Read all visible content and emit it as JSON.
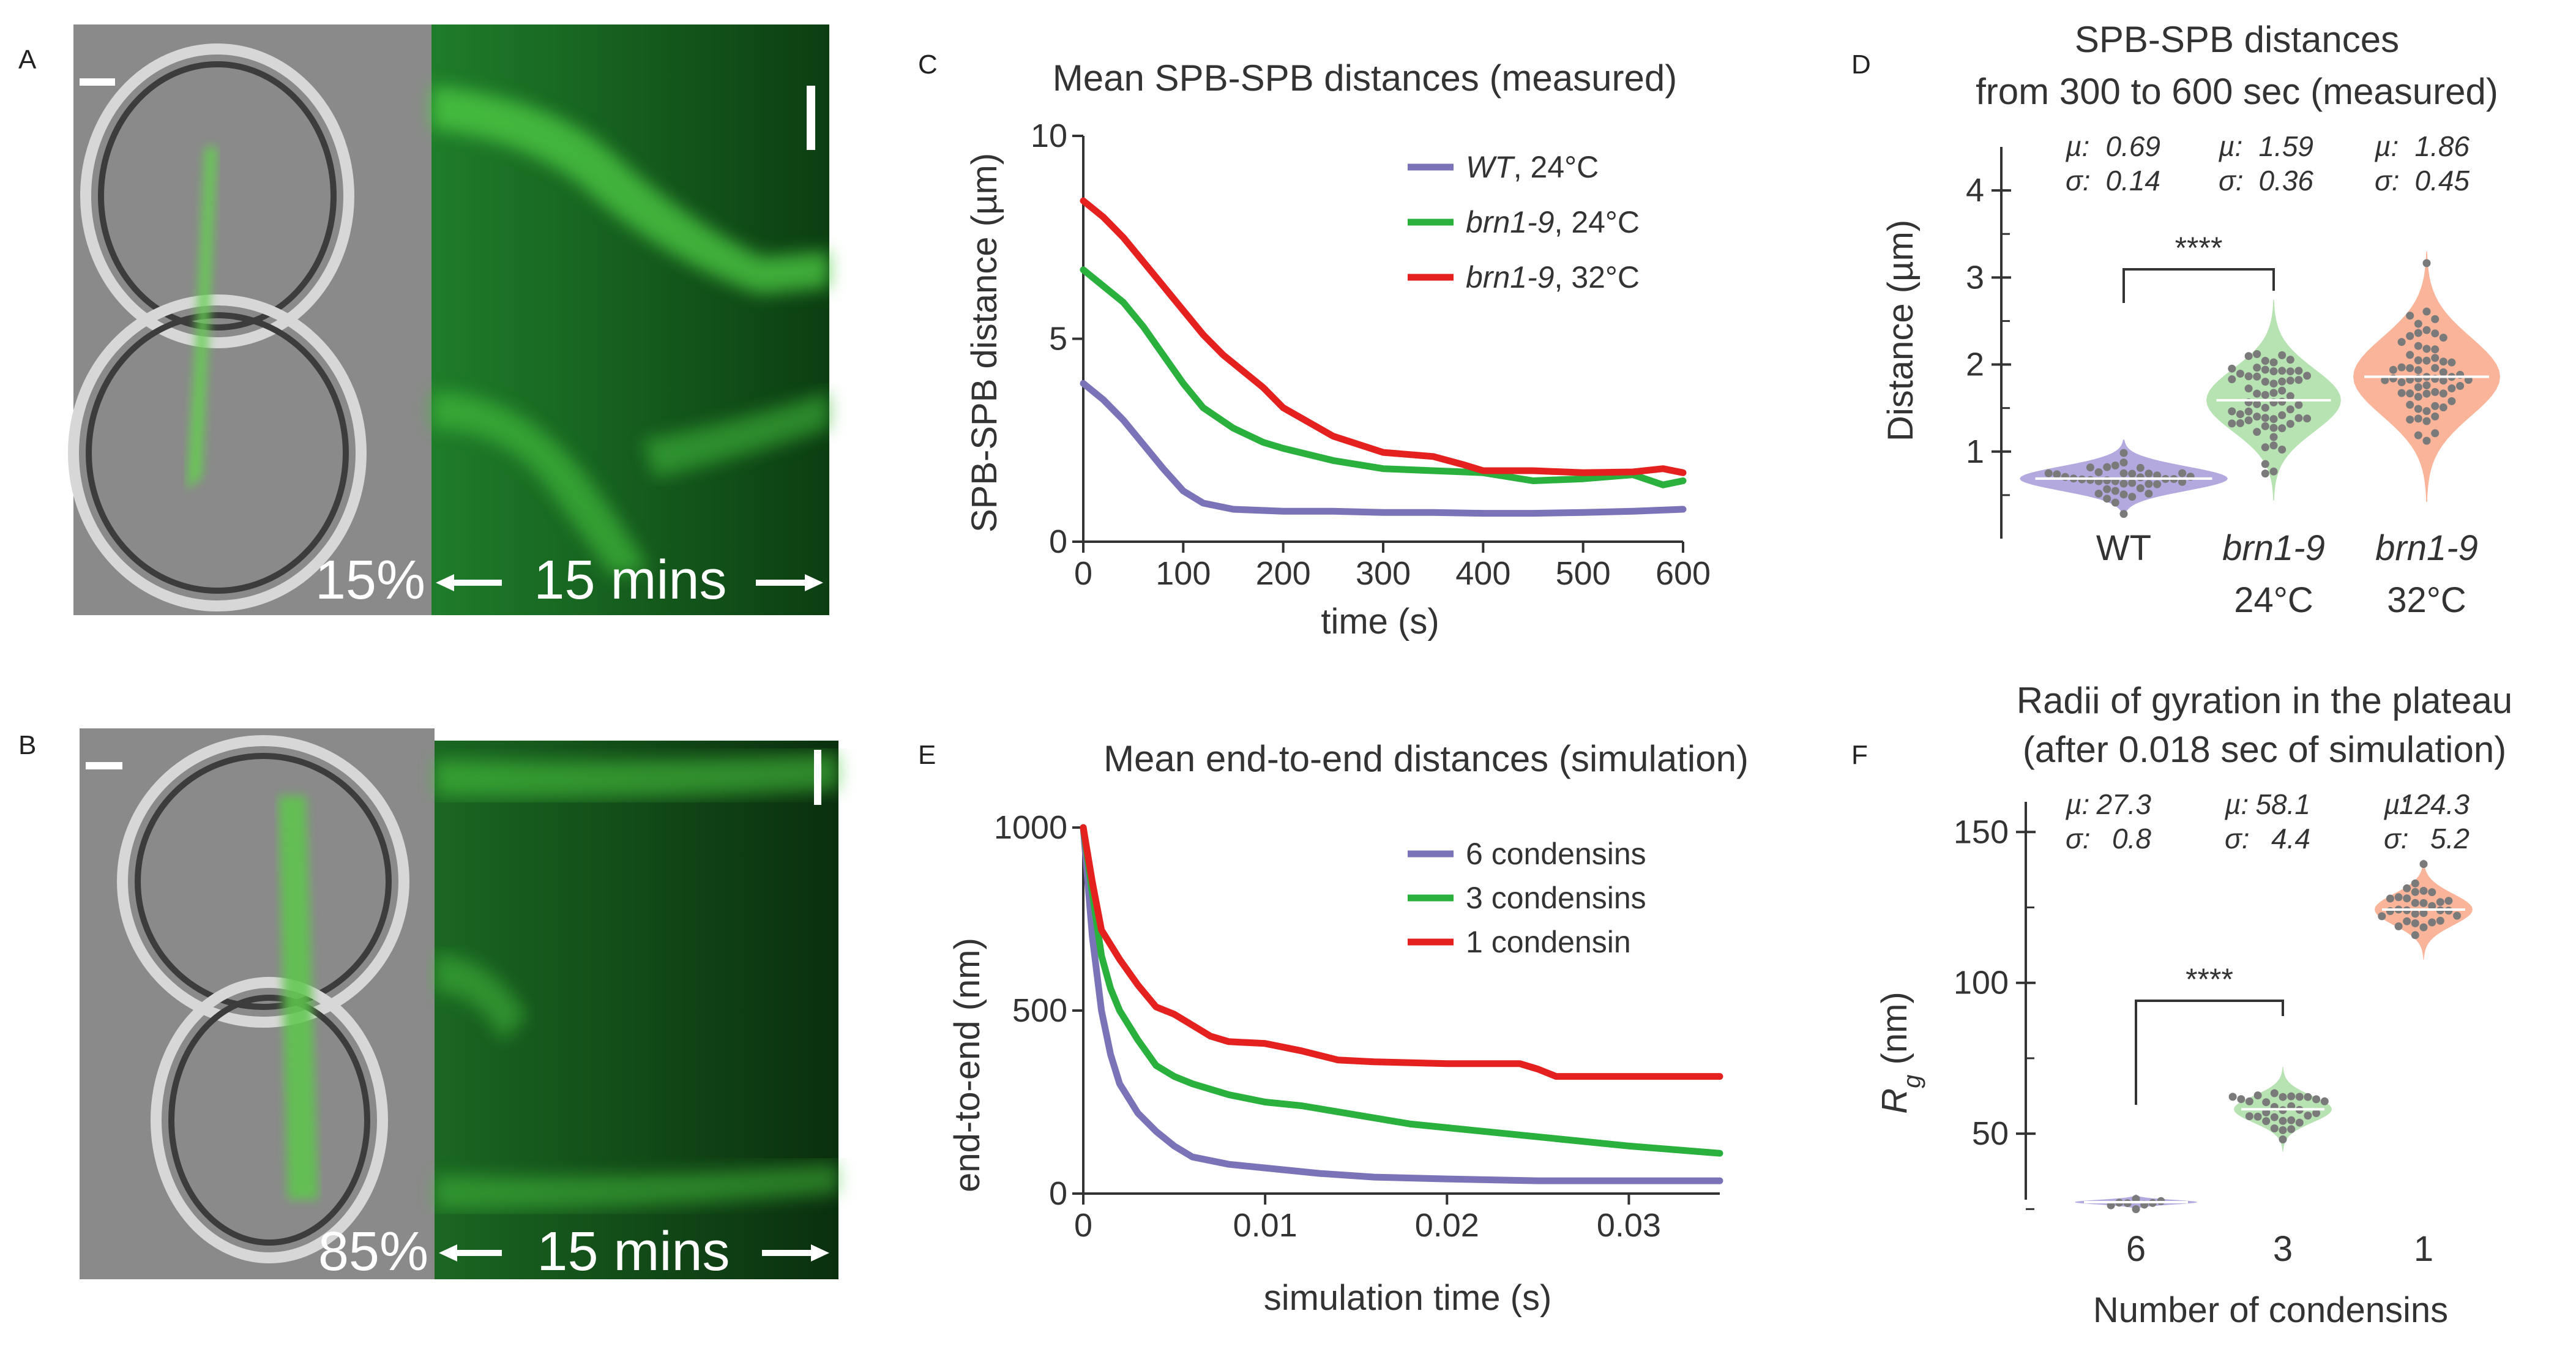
{
  "panels": {
    "A": {
      "letter": "A",
      "percent": "15%",
      "duration": "15 mins"
    },
    "B": {
      "letter": "B",
      "percent": "85%",
      "duration": "15 mins"
    }
  },
  "colors": {
    "wt": "#7b73b8",
    "g": "#2ab03c",
    "r": "#e5211f",
    "wt_fill": "#b3a9df",
    "g_fill": "#b7e2b2",
    "r_fill": "#f9b49a",
    "dots": "#7a7a7a"
  },
  "chart_data": [
    {
      "id": "C",
      "letter": "C",
      "type": "line",
      "title": "Mean SPB-SPB distances (measured)",
      "xlabel": "time (s)",
      "ylabel": "SPB-SPB distance (µm)",
      "xlim": [
        0,
        600
      ],
      "ylim": [
        0,
        10
      ],
      "xticks": [
        0,
        100,
        200,
        300,
        400,
        500,
        600
      ],
      "yticks": [
        0,
        5,
        10
      ],
      "series": [
        {
          "name_prefix": "WT",
          "name_suffix": ", 24°C",
          "color": "#7b73b8",
          "x": [
            0,
            20,
            40,
            60,
            80,
            100,
            120,
            150,
            200,
            250,
            300,
            350,
            400,
            450,
            500,
            550,
            600
          ],
          "y": [
            3.9,
            3.5,
            3.0,
            2.4,
            1.8,
            1.25,
            0.95,
            0.8,
            0.75,
            0.75,
            0.72,
            0.72,
            0.7,
            0.7,
            0.72,
            0.75,
            0.8
          ]
        },
        {
          "name_prefix": "brn1-9",
          "name_suffix": ", 24°C",
          "color": "#2ab03c",
          "x": [
            0,
            20,
            40,
            60,
            80,
            100,
            120,
            150,
            180,
            200,
            250,
            300,
            350,
            400,
            450,
            500,
            550,
            580,
            600
          ],
          "y": [
            6.7,
            6.3,
            5.9,
            5.3,
            4.6,
            3.9,
            3.3,
            2.8,
            2.45,
            2.3,
            2.0,
            1.8,
            1.75,
            1.7,
            1.5,
            1.55,
            1.65,
            1.4,
            1.5
          ]
        },
        {
          "name_prefix": "brn1-9",
          "name_suffix": ", 32°C",
          "color": "#e5211f",
          "x": [
            0,
            20,
            40,
            60,
            80,
            100,
            120,
            140,
            160,
            180,
            200,
            250,
            300,
            350,
            380,
            400,
            450,
            500,
            550,
            580,
            600
          ],
          "y": [
            8.4,
            8.0,
            7.5,
            6.9,
            6.3,
            5.7,
            5.1,
            4.6,
            4.2,
            3.8,
            3.3,
            2.6,
            2.2,
            2.1,
            1.9,
            1.75,
            1.75,
            1.7,
            1.72,
            1.8,
            1.7
          ]
        }
      ]
    },
    {
      "id": "D",
      "letter": "D",
      "type": "scatter",
      "title": [
        "SPB-SPB distances",
        "from 300 to 600 sec (measured)"
      ],
      "ylabel": "Distance (µm)",
      "ylim": [
        0,
        4.5
      ],
      "yticks": [
        1,
        2,
        3,
        4
      ],
      "categories": [
        [
          "WT"
        ],
        [
          "brn1-9",
          "24°C"
        ],
        [
          "brn1-9",
          "32°C"
        ]
      ],
      "mu": [
        "0.69",
        "1.59",
        "1.86"
      ],
      "sigma": [
        "0.14",
        "0.36",
        "0.45"
      ],
      "mu_label": "µ:",
      "sigma_label": "σ:",
      "significance": "****"
    },
    {
      "id": "E",
      "letter": "E",
      "type": "line",
      "title": "Mean end-to-end distances (simulation)",
      "xlabel": "simulation time (s)",
      "ylabel": "end-to-end (nm)",
      "xlim": [
        0,
        0.035
      ],
      "ylim": [
        0,
        1000
      ],
      "xticks": [
        0,
        0.01,
        0.02,
        0.03
      ],
      "xticklabels": [
        "0",
        "0.01",
        "0.02",
        "0.03"
      ],
      "yticks": [
        0,
        500,
        1000
      ],
      "series": [
        {
          "name": "6 condensins",
          "color": "#7b73b8",
          "x": [
            0,
            0.0005,
            0.001,
            0.0015,
            0.002,
            0.003,
            0.004,
            0.005,
            0.006,
            0.008,
            0.01,
            0.013,
            0.016,
            0.02,
            0.025,
            0.03,
            0.035
          ],
          "y": [
            1000,
            700,
            500,
            380,
            300,
            220,
            170,
            130,
            100,
            80,
            70,
            55,
            45,
            40,
            35,
            35,
            35
          ]
        },
        {
          "name": "3 condensins",
          "color": "#2ab03c",
          "x": [
            0,
            0.0005,
            0.001,
            0.0015,
            0.002,
            0.003,
            0.004,
            0.005,
            0.006,
            0.008,
            0.01,
            0.012,
            0.015,
            0.018,
            0.02,
            0.025,
            0.03,
            0.035
          ],
          "y": [
            1000,
            820,
            650,
            560,
            500,
            420,
            350,
            320,
            300,
            270,
            250,
            240,
            215,
            190,
            180,
            155,
            130,
            110
          ]
        },
        {
          "name": "1 condensin",
          "color": "#e5211f",
          "x": [
            0,
            0.0005,
            0.001,
            0.002,
            0.003,
            0.004,
            0.005,
            0.006,
            0.007,
            0.008,
            0.01,
            0.012,
            0.014,
            0.016,
            0.02,
            0.024,
            0.025,
            0.026,
            0.03,
            0.035
          ],
          "y": [
            1000,
            850,
            720,
            640,
            570,
            510,
            490,
            460,
            430,
            415,
            410,
            390,
            365,
            360,
            355,
            355,
            340,
            320,
            320,
            320
          ]
        }
      ]
    },
    {
      "id": "F",
      "letter": "F",
      "type": "scatter",
      "title": [
        "Radii of gyration in the plateau",
        "(after 0.018 sec of simulation)"
      ],
      "xlabel": "Number of condensins",
      "ylabel_main": "R",
      "ylabel_sub": "g",
      "ylabel_unit": "  (nm)",
      "ylim": [
        20,
        160
      ],
      "yticks": [
        50,
        100,
        150
      ],
      "categories": [
        "6",
        "3",
        "1"
      ],
      "mu": [
        "27.3",
        "58.1",
        "124.3"
      ],
      "sigma": [
        "0.8",
        "4.4",
        "5.2"
      ],
      "mu_label": "µ:",
      "sigma_label": "σ:",
      "significance": "****"
    }
  ]
}
